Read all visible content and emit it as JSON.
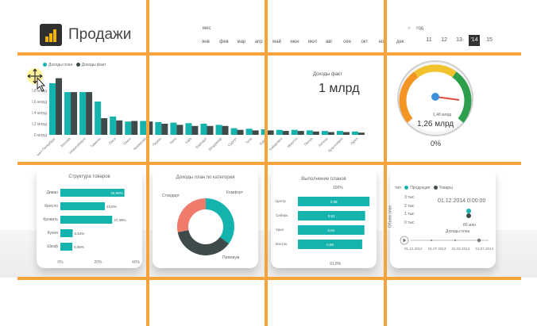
{
  "app": {
    "title": "Продажи"
  },
  "colors": {
    "teal": "#14b3ad",
    "dark": "#3f4a4a",
    "salmon": "#f07b6c",
    "orange": "#f5a33a",
    "gauge_green": "#2d9e4b",
    "gauge_yellow": "#f2c12e",
    "gauge_orange": "#f39423",
    "marker_blue": "#3d8fe0",
    "needle_red": "#e04a3a"
  },
  "slicers": {
    "month_label": "мес",
    "months": [
      "янв",
      "фев",
      "мар",
      "апр",
      "май",
      "июн",
      "июл",
      "авг",
      "сен",
      "окт",
      "ноя",
      "дек"
    ],
    "year_label": "год",
    "years": [
      "11",
      "12",
      "13",
      "'14",
      "15"
    ],
    "selected_year": "'14"
  },
  "income_chart": {
    "legend": [
      "Доходы план",
      "Доходы факт"
    ],
    "y_ticks": [
      "0,8 млрд",
      "0,6 млрд",
      "0,4 млрд",
      "0,2 млрд",
      "0 млрд"
    ]
  },
  "income_kpi": {
    "title": "Доходы факт",
    "value": "1 млрд"
  },
  "gauge": {
    "min": "0%",
    "target": "1,48 млрд",
    "value": "1,26 млрд"
  },
  "structure_card": {
    "title": "Структура товаров",
    "x_ticks": [
      "0%",
      "20%",
      "40%"
    ]
  },
  "donut_card": {
    "title": "Доходы план по категория",
    "labels": [
      "Стандарт",
      "Комфорт",
      "Премиум"
    ]
  },
  "plan_card": {
    "title": "Выполнение планов",
    "top_label": "100%",
    "bottom_label": "91,8%"
  },
  "scatter_card": {
    "legend_label": "тип",
    "legend": [
      "Продукция",
      "Товары"
    ],
    "date": "01.12.2014 0:00:00",
    "y_axis_label": "Объем план",
    "y_ticks": [
      "3 тыс",
      "2 тыс",
      "1 тыс",
      "0 тыс"
    ],
    "x_label": "Доходы план",
    "x_ticks": [
      "0 млн",
      "80 млн"
    ],
    "timeline": [
      "01.12.2012",
      "01.07.2013",
      "01.02.2014",
      "01.07.2014"
    ]
  },
  "chart_data": [
    {
      "type": "bar",
      "title": "",
      "series": [
        {
          "name": "Доходы план",
          "values": [
            0.93,
            0.77,
            0.77,
            0.6,
            0.33,
            0.24,
            0.25,
            0.23,
            0.22,
            0.21,
            0.2,
            0.18,
            0.12,
            0.11,
            0.1,
            0.09,
            0.09,
            0.08,
            0.07,
            0.07,
            0.06
          ]
        },
        {
          "name": "Доходы факт",
          "values": [
            1.02,
            0.77,
            0.77,
            0.3,
            0.26,
            0.25,
            0.24,
            0.2,
            0.18,
            0.16,
            0.16,
            0.16,
            0.09,
            0.08,
            0.08,
            0.07,
            0.07,
            0.06,
            0.05,
            0.05,
            0.04
          ]
        }
      ],
      "categories": [
        "Санкт-Петербург",
        "Москва",
        "Новосибирск",
        "Тюмень",
        "Омск",
        "Томск",
        "Кемерово",
        "Пермь",
        "Чита",
        "Уфа",
        "Барнаул",
        "Владимир",
        "Сургут",
        "Тула",
        "Курск",
        "Хабаровск",
        "Иркутск",
        "Пенза",
        "Липецк",
        "Красноярск",
        "Орёл"
      ],
      "ylim": [
        0,
        1.0
      ]
    },
    {
      "type": "bar",
      "title": "Структура товаров",
      "categories": [
        "Диван",
        "Кресло",
        "Кровать",
        "Кухня",
        "Шкаф"
      ],
      "values": [
        33.96,
        23.6,
        27.49,
        6.54,
        6.35
      ],
      "value_labels": [
        "33,96%",
        "23,6%",
        "27,49%",
        "6,54%",
        "6,35%"
      ],
      "xlim": [
        0,
        40
      ]
    },
    {
      "type": "pie",
      "title": "Доходы план по категория",
      "categories": [
        "Комфорт",
        "Премиум",
        "Стандарт"
      ],
      "values": [
        35,
        37,
        28
      ]
    },
    {
      "type": "bar",
      "title": "Выполнение планов",
      "categories": [
        "Центр",
        "Сибирь",
        "Урал",
        "Восток"
      ],
      "values": [
        0.98,
        0.92,
        0.91,
        0.88
      ],
      "value_labels": [
        "0,98",
        "0,92",
        "0,91",
        "0,88"
      ]
    },
    {
      "type": "scatter",
      "series": [
        {
          "name": "Продукция",
          "x": [
            80
          ],
          "y": [
            1.5
          ]
        },
        {
          "name": "Товары",
          "x": [
            80
          ],
          "y": [
            1.0
          ]
        }
      ]
    }
  ]
}
